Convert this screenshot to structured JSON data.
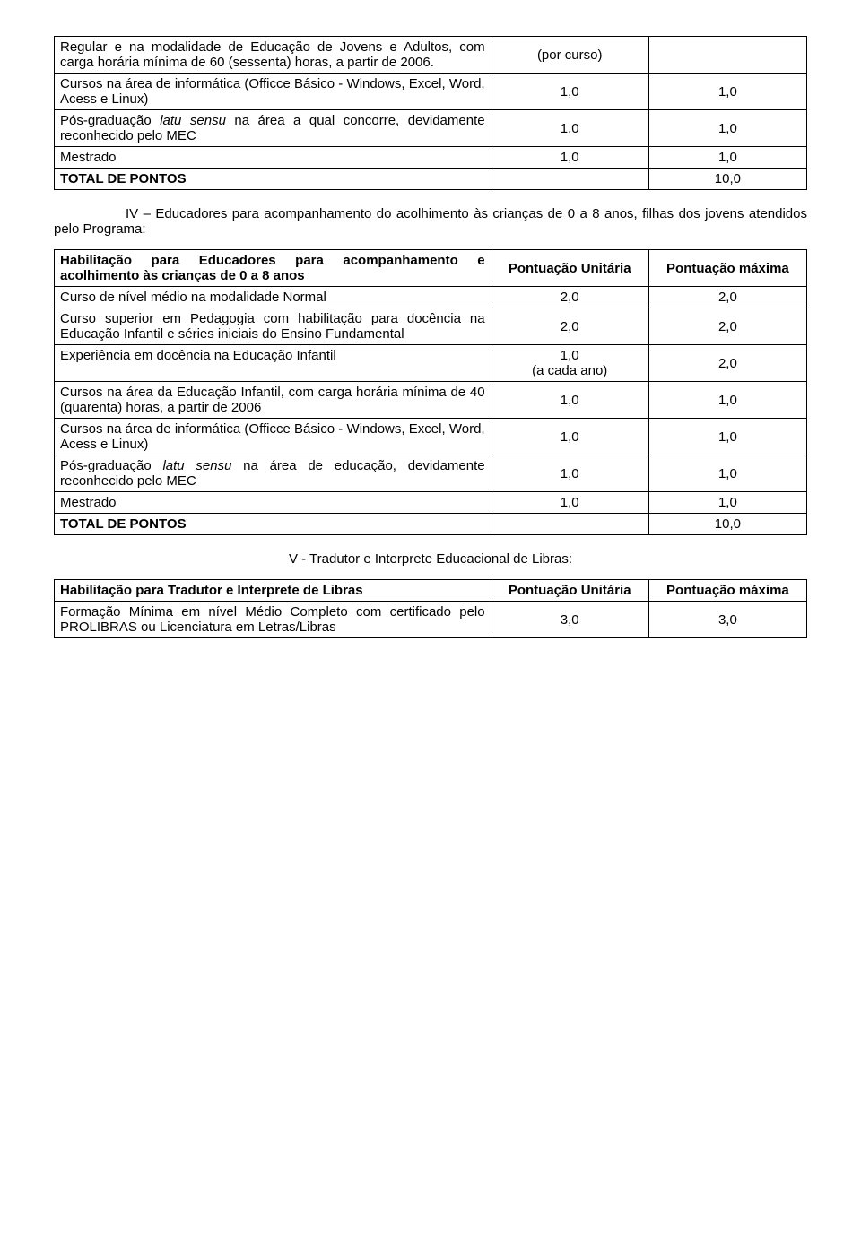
{
  "table1": {
    "rows": [
      {
        "desc_parts": [
          {
            "t": "Regular e na modalidade de Educação de Jovens e Adultos, com carga horária mínima de 60 (sessenta) horas, a partir de 2006.",
            "b": false,
            "i": false
          }
        ],
        "c1": "(por curso)",
        "c2": ""
      },
      {
        "desc_parts": [
          {
            "t": "Cursos na área de informática (Officce Básico - Windows, Excel, Word, Acess e Linux)",
            "b": false,
            "i": false
          }
        ],
        "c1": "1,0",
        "c2": "1,0"
      },
      {
        "desc_parts": [
          {
            "t": "Pós-graduação ",
            "b": false,
            "i": false
          },
          {
            "t": "latu sensu",
            "b": false,
            "i": true
          },
          {
            "t": " na área a qual concorre, devidamente reconhecido pelo MEC",
            "b": false,
            "i": false
          }
        ],
        "c1": "1,0",
        "c2": "1,0"
      },
      {
        "desc_parts": [
          {
            "t": "Mestrado",
            "b": false,
            "i": false
          }
        ],
        "c1": "1,0",
        "c2": "1,0"
      },
      {
        "desc_parts": [
          {
            "t": "TOTAL DE PONTOS",
            "b": true,
            "i": false
          }
        ],
        "c1": "",
        "c2": "10,0"
      }
    ]
  },
  "section4_heading": "IV – Educadores para acompanhamento do acolhimento às crianças de 0 a 8 anos, filhas dos jovens atendidos pelo Programa:",
  "table2": {
    "header": {
      "col0": "Habilitação para Educadores para acompanhamento e acolhimento às crianças de 0 a 8 anos",
      "col1": "Pontuação Unitária",
      "col2": "Pontuação máxima"
    },
    "rows": [
      {
        "desc_parts": [
          {
            "t": "Curso de nível médio na modalidade Normal",
            "b": false,
            "i": false
          }
        ],
        "c1": "2,0",
        "c2": "2,0"
      },
      {
        "desc_parts": [
          {
            "t": "Curso superior em Pedagogia com habilitação para docência na Educação Infantil e séries iniciais do Ensino Fundamental",
            "b": false,
            "i": false
          }
        ],
        "c1": "2,0",
        "c2": "2,0"
      },
      {
        "desc_parts": [
          {
            "t": "Experiência em docência na Educação Infantil",
            "b": false,
            "i": false
          }
        ],
        "c1": "1,0\n(a cada ano)",
        "c2": "2,0"
      },
      {
        "desc_parts": [
          {
            "t": "Cursos na área da Educação Infantil, com carga horária mínima de 40 (quarenta) horas, a partir de 2006",
            "b": false,
            "i": false
          }
        ],
        "c1": "1,0",
        "c2": "1,0"
      },
      {
        "desc_parts": [
          {
            "t": "Cursos na área de informática (Officce Básico - Windows, Excel, Word, Acess e Linux)",
            "b": false,
            "i": false
          }
        ],
        "c1": "1,0",
        "c2": "1,0"
      },
      {
        "desc_parts": [
          {
            "t": "Pós-graduação ",
            "b": false,
            "i": false
          },
          {
            "t": "latu sensu",
            "b": false,
            "i": true
          },
          {
            "t": " na área de educação, devidamente reconhecido pelo MEC",
            "b": false,
            "i": false
          }
        ],
        "c1": "1,0",
        "c2": "1,0"
      },
      {
        "desc_parts": [
          {
            "t": "Mestrado",
            "b": false,
            "i": false
          }
        ],
        "c1": "1,0",
        "c2": "1,0"
      },
      {
        "desc_parts": [
          {
            "t": "TOTAL DE PONTOS",
            "b": true,
            "i": false
          }
        ],
        "c1": "",
        "c2": "10,0"
      }
    ]
  },
  "section5_heading": "V - Tradutor e Interprete Educacional de Libras:",
  "table3": {
    "header": {
      "col0": "Habilitação para Tradutor e Interprete de Libras",
      "col1": "Pontuação Unitária",
      "col2": "Pontuação máxima"
    },
    "rows": [
      {
        "desc_parts": [
          {
            "t": "Formação Mínima em nível Médio Completo com certificado pelo PROLIBRAS ou Licenciatura em Letras/Libras",
            "b": false,
            "i": false
          }
        ],
        "c1": "3,0",
        "c2": "3,0"
      }
    ]
  }
}
